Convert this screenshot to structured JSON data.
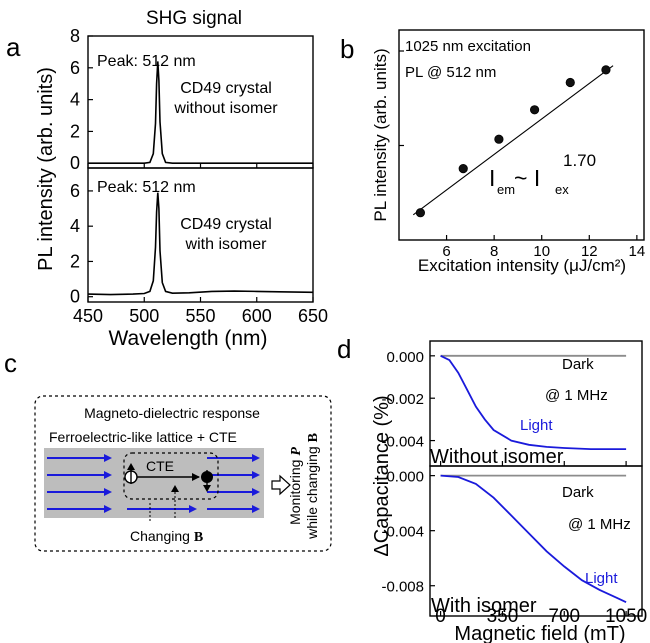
{
  "chart_data": [
    {
      "panel": "a",
      "type": "line",
      "title": "SHG signal",
      "xlabel": "Wavelength (nm)",
      "ylabel": "PL intensity (arb. units)",
      "xlim": [
        450,
        650
      ],
      "x_ticks": [
        "450",
        "500",
        "550",
        "600",
        "650"
      ],
      "subplots": [
        {
          "ylim": [
            -0.3,
            8
          ],
          "y_ticks": [
            "0",
            "2",
            "4",
            "6",
            "8"
          ],
          "annotations": [
            "Peak: 512 nm",
            "CD49 crystal",
            "without isomer"
          ],
          "series": [
            {
              "x": [
                450,
                480,
                500,
                505,
                508,
                510,
                511,
                512,
                513,
                514,
                516,
                519,
                525,
                560,
                600,
                650
              ],
              "y": [
                0,
                0,
                0,
                0.05,
                0.6,
                2.5,
                5.0,
                6.4,
                5.2,
                2.6,
                0.6,
                0.05,
                0,
                0,
                0,
                0
              ]
            }
          ]
        },
        {
          "ylim": [
            -0.3,
            7.3
          ],
          "y_ticks": [
            "0",
            "2",
            "4",
            "6"
          ],
          "annotations": [
            "Peak: 512 nm",
            "CD49 crystal",
            "with isomer"
          ],
          "series": [
            {
              "x": [
                450,
                470,
                490,
                500,
                505,
                508,
                510,
                511,
                512,
                513,
                514,
                516,
                519,
                525,
                540,
                560,
                580,
                600,
                620,
                650
              ],
              "y": [
                0.15,
                0.12,
                0.15,
                0.18,
                0.3,
                0.9,
                2.8,
                4.8,
                5.9,
                5.0,
                2.6,
                0.8,
                0.3,
                0.2,
                0.22,
                0.3,
                0.32,
                0.3,
                0.28,
                0.25
              ]
            }
          ]
        }
      ]
    },
    {
      "panel": "b",
      "type": "scatter",
      "xlabel": "Excitation intensity (μJ/cm²)",
      "ylabel": "PL intensity (arb. units)",
      "xlim": [
        4,
        14.3
      ],
      "ylim": [
        0,
        1
      ],
      "x_ticks": [
        "6",
        "8",
        "10",
        "12",
        "14"
      ],
      "annotations": [
        "1025 nm excitation",
        "PL @ 512 nm"
      ],
      "fit_label": {
        "base": "I",
        "em": "em",
        "mid": " ~ I",
        "ex": "ex",
        "power": "1.70"
      },
      "points": {
        "x": [
          4.9,
          6.7,
          8.2,
          9.7,
          11.2,
          12.7
        ],
        "y": [
          0.13,
          0.34,
          0.48,
          0.62,
          0.75,
          0.81
        ]
      },
      "fit_line": {
        "x": [
          4.6,
          13.0
        ],
        "y": [
          0.12,
          0.83
        ]
      }
    },
    {
      "panel": "d",
      "type": "line",
      "xlabel": "Magnetic field (mT)",
      "ylabel": "ΔCapacitance (%)",
      "xlim": [
        -60,
        1140
      ],
      "x_ticks": [
        "0",
        "350",
        "700",
        "1050"
      ],
      "line_colors": {
        "dark": "#8c8c8c",
        "light": "#1a1adb"
      },
      "subplots": [
        {
          "ylim": [
            -0.0052,
            0.0007
          ],
          "y_ticks": [
            "0.000",
            "-0.002",
            "-0.004"
          ],
          "annotations": [
            "Dark",
            "@ 1 MHz",
            "Light",
            "Without isomer"
          ],
          "series": [
            {
              "x": [
                0,
                1050
              ],
              "y": [
                0,
                0
              ]
            },
            {
              "x": [
                0,
                50,
                100,
                150,
                200,
                250,
                300,
                400,
                500,
                600,
                700,
                850,
                1050
              ],
              "y": [
                0,
                -0.0002,
                -0.0008,
                -0.0016,
                -0.0024,
                -0.003,
                -0.0035,
                -0.004,
                -0.0042,
                -0.0043,
                -0.00435,
                -0.0044,
                -0.0044
              ]
            }
          ]
        },
        {
          "ylim": [
            -0.0102,
            0.0007
          ],
          "y_ticks": [
            "0.000",
            "-0.004",
            "-0.008"
          ],
          "annotations": [
            "Dark",
            "@ 1 MHz",
            "Light",
            "With isomer"
          ],
          "series": [
            {
              "x": [
                0,
                1050
              ],
              "y": [
                0,
                0
              ]
            },
            {
              "x": [
                0,
                100,
                200,
                300,
                400,
                500,
                600,
                700,
                800,
                900,
                1000,
                1050
              ],
              "y": [
                0,
                -0.0001,
                -0.0006,
                -0.0016,
                -0.0029,
                -0.0042,
                -0.0055,
                -0.0066,
                -0.0076,
                -0.0083,
                -0.0089,
                -0.0092
              ]
            }
          ]
        }
      ]
    }
  ],
  "panel_labels": {
    "a": "a",
    "b": "b",
    "c": "c",
    "d": "d"
  },
  "schematic": {
    "title": "Magneto-dielectric response",
    "lattice_label": "Ferroelectric-like lattice + CTE",
    "cte_label": "CTE",
    "changing_label": "Changing",
    "changing_symbol": "B",
    "monitor_line1_pre": "Monitoring ",
    "monitor_sym_p": "P",
    "monitor_line2_pre": "while changing ",
    "monitor_sym_b": "B",
    "arrow_color": "#1a1adb",
    "lattice_color": "#bdbdbd"
  }
}
